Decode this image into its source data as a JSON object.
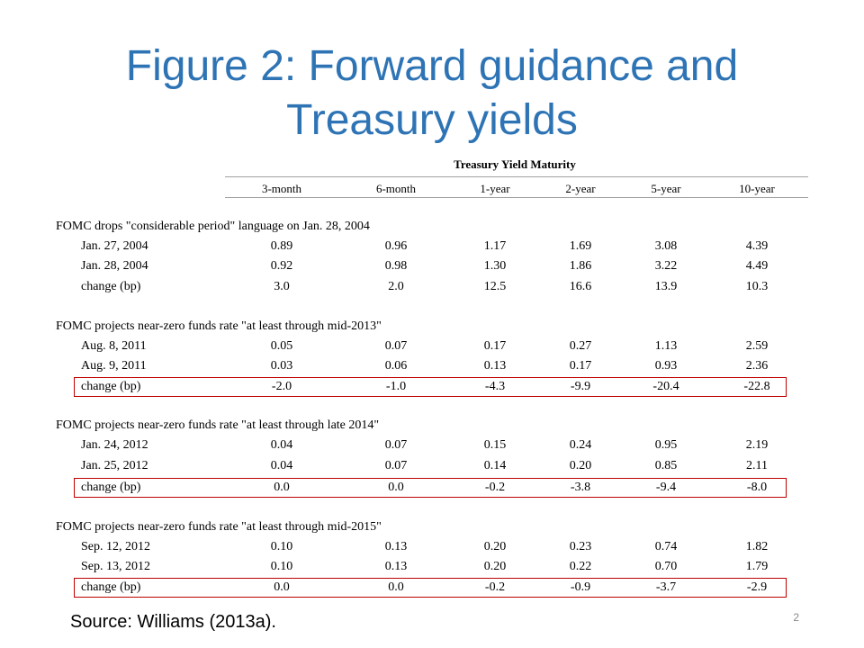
{
  "slide": {
    "title_line1": "Figure 2: Forward guidance and",
    "title_line2": "Treasury yields",
    "source": "Source: Williams (2013a).",
    "page_number": "2",
    "title_color": "#2E74B5",
    "highlight_color": "#C00000"
  },
  "table": {
    "super_header": "Treasury Yield  Maturity",
    "columns": [
      "3-month",
      "6-month",
      "1-year",
      "2-year",
      "5-year",
      "10-year"
    ],
    "sections": [
      {
        "heading": "FOMC drops \"considerable  period\"  language   on Jan. 28, 2004",
        "rows": [
          {
            "label": "Jan. 27, 2004",
            "values": [
              "0.89",
              "0.96",
              "1.17",
              "1.69",
              "3.08",
              "4.39"
            ]
          },
          {
            "label": "Jan. 28, 2004",
            "values": [
              "0.92",
              "0.98",
              "1.30",
              "1.86",
              "3.22",
              "4.49"
            ]
          },
          {
            "label": "change  (bp)",
            "values": [
              "3.0",
              "2.0",
              "12.5",
              "16.6",
              "13.9",
              "10.3"
            ]
          }
        ]
      },
      {
        "heading": "FOMC projects near-zero funds  rate  \"at least through  mid-2013\"",
        "rows": [
          {
            "label": "Aug.  8, 2011",
            "values": [
              "0.05",
              "0.07",
              "0.17",
              "0.27",
              "1.13",
              "2.59"
            ]
          },
          {
            "label": "Aug.  9, 2011",
            "values": [
              "0.03",
              "0.06",
              "0.13",
              "0.17",
              "0.93",
              "2.36"
            ]
          },
          {
            "label": "change  (bp)",
            "values": [
              "-2.0",
              "-1.0",
              "-4.3",
              "-9.9",
              "-20.4",
              "-22.8"
            ]
          }
        ]
      },
      {
        "heading": "FOMC projects near-zero funds  rate  \"at least through  late 2014\"",
        "rows": [
          {
            "label": "Jan. 24, 2012",
            "values": [
              "0.04",
              "0.07",
              "0.15",
              "0.24",
              "0.95",
              "2.19"
            ]
          },
          {
            "label": "Jan. 25, 2012",
            "values": [
              "0.04",
              "0.07",
              "0.14",
              "0.20",
              "0.85",
              "2.11"
            ]
          },
          {
            "label": "change  (bp)",
            "values": [
              "0.0",
              "0.0",
              "-0.2",
              "-3.8",
              "-9.4",
              "-8.0"
            ]
          }
        ]
      },
      {
        "heading": "FOMC projects near-zero funds  rate  \"at least through  mid-2015\"",
        "rows": [
          {
            "label": "Sep. 12, 2012",
            "values": [
              "0.10",
              "0.13",
              "0.20",
              "0.23",
              "0.74",
              "1.82"
            ]
          },
          {
            "label": "Sep. 13, 2012",
            "values": [
              "0.10",
              "0.13",
              "0.20",
              "0.22",
              "0.70",
              "1.79"
            ]
          },
          {
            "label": "change  (bp)",
            "values": [
              "0.0",
              "0.0",
              "-0.2",
              "-0.9",
              "-3.7",
              "-2.9"
            ]
          }
        ]
      }
    ]
  }
}
